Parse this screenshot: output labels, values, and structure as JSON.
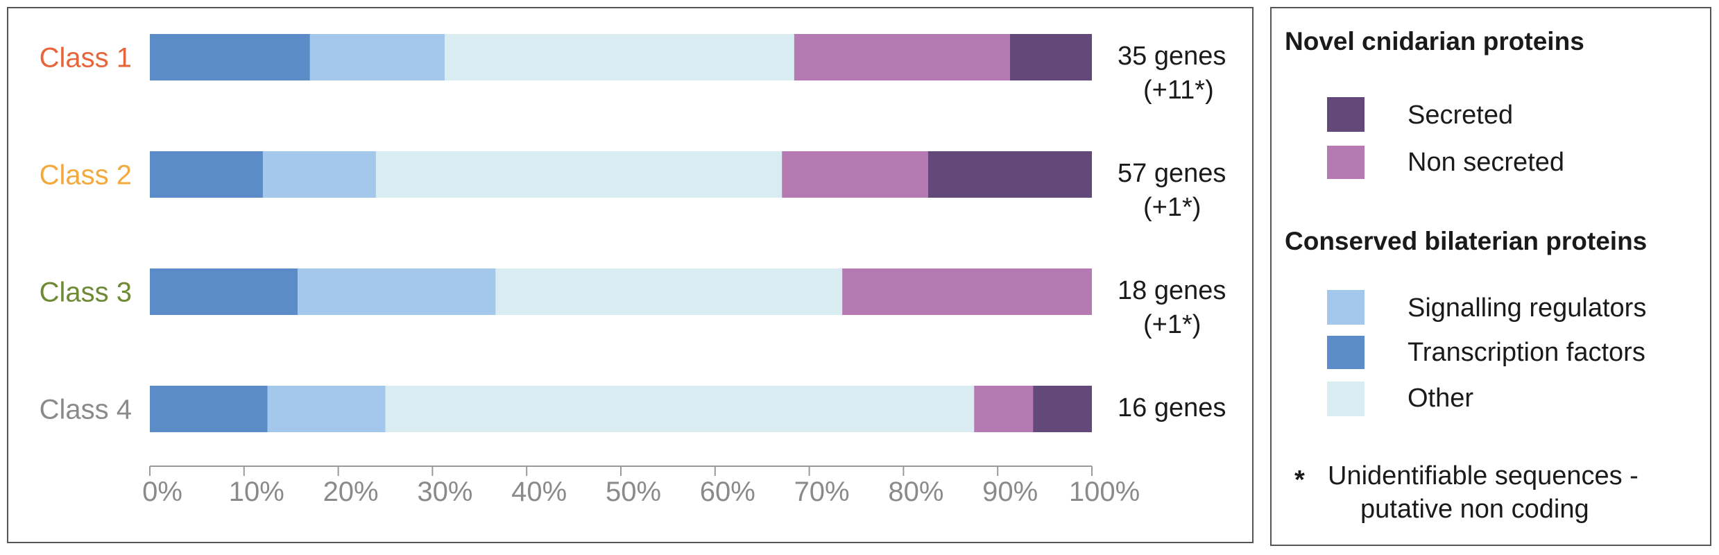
{
  "chart_data": {
    "type": "bar",
    "orientation": "horizontal",
    "stacked": true,
    "categories": [
      "Class 1",
      "Class 2",
      "Class 3",
      "Class 4"
    ],
    "category_colors": [
      "#e8643a",
      "#f3a93c",
      "#6e8a34",
      "#8a8a8a"
    ],
    "series": [
      {
        "name": "Transcription factors",
        "color": "#5b8cc8",
        "values": [
          17,
          12,
          15.7,
          12.5
        ]
      },
      {
        "name": "Signalling regulators",
        "color": "#a3c8ec",
        "values": [
          14.3,
          12,
          21,
          12.5
        ]
      },
      {
        "name": "Other",
        "color": "#d8ecf2",
        "values": [
          37.1,
          43.1,
          36.8,
          62.5
        ]
      },
      {
        "name": "Non secreted",
        "color": "#b57ab2",
        "values": [
          22.9,
          15.5,
          26.5,
          6.25
        ]
      },
      {
        "name": "Secreted",
        "color": "#62497a",
        "values": [
          8.7,
          17.4,
          0,
          6.25
        ]
      }
    ],
    "row_annotations": [
      {
        "line1": "35 genes",
        "line2": "(+11*)"
      },
      {
        "line1": "57 genes",
        "line2": "(+1*)"
      },
      {
        "line1": "18 genes",
        "line2": "(+1*)"
      },
      {
        "line1": "16 genes",
        "line2": ""
      }
    ],
    "x_ticks": [
      "0%",
      "10%",
      "20%",
      "30%",
      "40%",
      "50%",
      "60%",
      "70%",
      "80%",
      "90%",
      "100%"
    ],
    "xlim": [
      0,
      100
    ],
    "grid": false
  },
  "legend": {
    "sections": [
      {
        "title": "Novel cnidarian proteins",
        "items": [
          {
            "label": "Secreted",
            "color": "#62497a"
          },
          {
            "label": "Non secreted",
            "color": "#b57ab2"
          }
        ]
      },
      {
        "title": "Conserved bilaterian proteins",
        "items": [
          {
            "label": "Signalling regulators",
            "color": "#a3c8ec"
          },
          {
            "label": "Transcription factors",
            "color": "#5b8cc8"
          },
          {
            "label": "Other",
            "color": "#d8ecf2"
          }
        ]
      }
    ],
    "footnote": {
      "symbol": "*",
      "line1": "Unidentifiable sequences -",
      "line2": "putative non coding"
    }
  }
}
